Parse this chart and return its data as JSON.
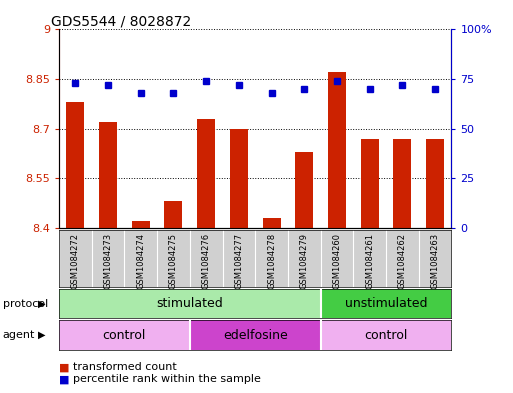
{
  "title": "GDS5544 / 8028872",
  "samples": [
    "GSM1084272",
    "GSM1084273",
    "GSM1084274",
    "GSM1084275",
    "GSM1084276",
    "GSM1084277",
    "GSM1084278",
    "GSM1084279",
    "GSM1084260",
    "GSM1084261",
    "GSM1084262",
    "GSM1084263"
  ],
  "red_values": [
    8.78,
    8.72,
    8.42,
    8.48,
    8.73,
    8.7,
    8.43,
    8.63,
    8.87,
    8.67,
    8.67,
    8.67
  ],
  "blue_values": [
    73,
    72,
    68,
    68,
    74,
    72,
    68,
    70,
    74,
    70,
    72,
    70
  ],
  "ylim_left": [
    8.4,
    9.0
  ],
  "ylim_right": [
    0,
    100
  ],
  "yticks_left": [
    8.4,
    8.55,
    8.7,
    8.85,
    9.0
  ],
  "ytick_labels_left": [
    "8.4",
    "8.55",
    "8.7",
    "8.85",
    "9"
  ],
  "yticks_right": [
    0,
    25,
    50,
    75,
    100
  ],
  "ytick_labels_right": [
    "0",
    "25",
    "50",
    "75",
    "100%"
  ],
  "bar_color": "#cc2200",
  "dot_color": "#0000cc",
  "bg_color": "#ffffff",
  "plot_bg": "#ffffff",
  "label_bg": "#d0d0d0",
  "proto_stim_color": "#aaeaaa",
  "proto_unstim_color": "#44cc44",
  "agent_ctrl_color": "#f0b0f0",
  "agent_edel_color": "#cc44cc",
  "title_fontsize": 10,
  "tick_fontsize": 8,
  "legend_fontsize": 8,
  "row_label_fontsize": 8,
  "sample_fontsize": 6
}
